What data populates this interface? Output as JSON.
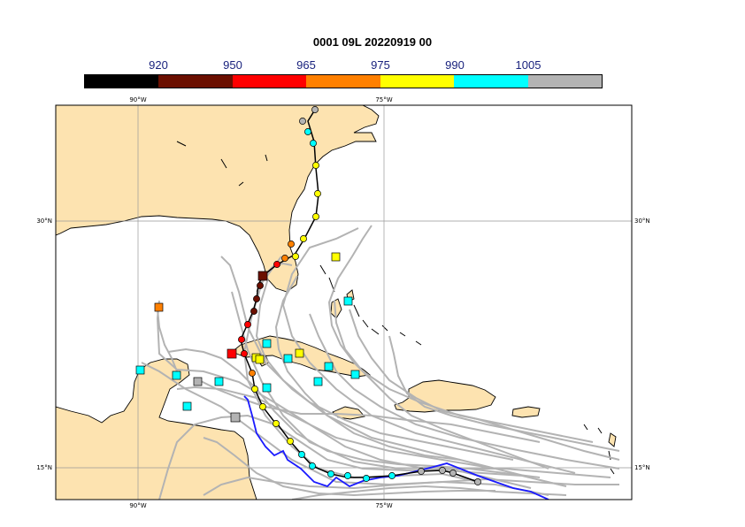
{
  "title": "0001 09L 20220919 00",
  "legend": {
    "tick_labels": [
      "920",
      "950",
      "965",
      "975",
      "990",
      "1005"
    ],
    "colors": [
      "#000000",
      "#6b0f00",
      "#ff0000",
      "#ff8000",
      "#ffff00",
      "#00ffff",
      "#b3b3b3"
    ]
  },
  "axes": {
    "lon_top": [
      "90°W",
      "75°W"
    ],
    "lon_bottom": [
      "90°W",
      "75°W"
    ],
    "lat_left": [
      "30°N",
      "15°N"
    ],
    "lat_right": [
      "30°N",
      "15°N"
    ]
  },
  "colors": {
    "land": "#fde3b0",
    "ocean": "#ffffff",
    "ensemble_tracks": "#b3b3b3",
    "observed_track": "#1a1aff",
    "forecast_track": "#000000",
    "gridline": "#999999"
  }
}
